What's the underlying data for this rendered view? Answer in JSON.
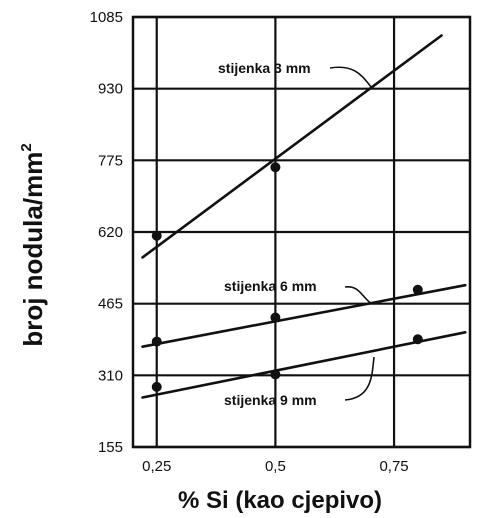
{
  "chart_data": {
    "type": "line",
    "xlabel": "% Si (kao cjepivo)",
    "ylabel": "broj nodula/mm",
    "ylabel_superscript": "2",
    "x_ticks": [
      "0,25",
      "0,5",
      "0,75"
    ],
    "y_ticks": [
      "155",
      "310",
      "465",
      "620",
      "775",
      "930",
      "1085"
    ],
    "xlim": [
      0.2,
      0.91
    ],
    "ylim": [
      155,
      1085
    ],
    "grid": true,
    "series": [
      {
        "name": "stijenka 3 mm",
        "points": [
          {
            "x": 0.25,
            "y": 612
          },
          {
            "x": 0.5,
            "y": 760
          }
        ],
        "fit": [
          [
            0.22,
            565
          ],
          [
            0.85,
            1045
          ]
        ]
      },
      {
        "name": "stijenka 6 mm",
        "points": [
          {
            "x": 0.25,
            "y": 383
          },
          {
            "x": 0.5,
            "y": 435
          },
          {
            "x": 0.8,
            "y": 495
          }
        ],
        "fit": [
          [
            0.22,
            372
          ],
          [
            0.9,
            505
          ]
        ]
      },
      {
        "name": "stijenka 9 mm",
        "points": [
          {
            "x": 0.25,
            "y": 285
          },
          {
            "x": 0.5,
            "y": 312
          },
          {
            "x": 0.8,
            "y": 388
          }
        ],
        "fit": [
          [
            0.22,
            262
          ],
          [
            0.9,
            403
          ]
        ]
      }
    ]
  }
}
